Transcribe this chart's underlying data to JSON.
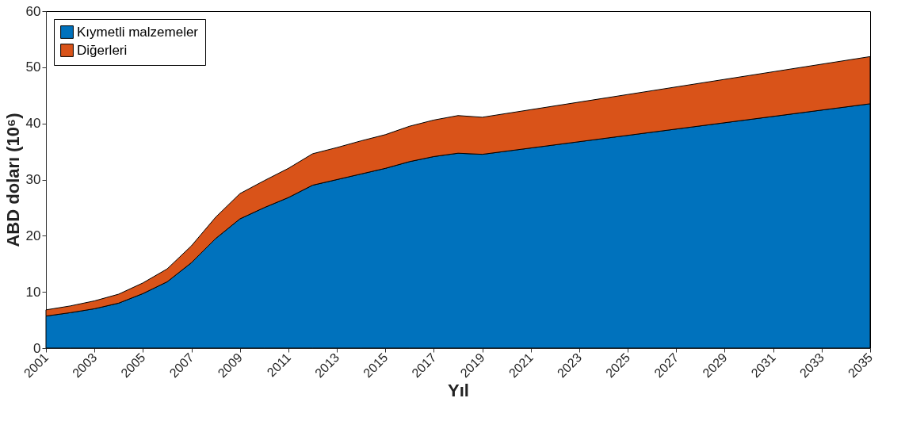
{
  "chart_data": {
    "type": "area",
    "stacked": true,
    "xlabel": "Yıl",
    "ylabel": "ABD doları (10⁶)",
    "x": [
      2001,
      2002,
      2003,
      2004,
      2005,
      2006,
      2007,
      2008,
      2009,
      2010,
      2011,
      2012,
      2013,
      2014,
      2015,
      2016,
      2017,
      2018,
      2019,
      2035
    ],
    "series": [
      {
        "name": "Kıymetli malzemeler",
        "color": "#0072bd",
        "values": [
          5.7,
          6.3,
          7.0,
          8.0,
          9.7,
          11.8,
          15.2,
          19.5,
          23.0,
          25.0,
          26.8,
          29.0,
          30.0,
          31.0,
          32.0,
          33.2,
          34.1,
          34.7,
          34.5,
          43.5
        ]
      },
      {
        "name": "Diğerleri",
        "color": "#d95319",
        "values": [
          1.1,
          1.2,
          1.4,
          1.6,
          1.9,
          2.3,
          3.0,
          3.8,
          4.5,
          4.8,
          5.2,
          5.6,
          5.7,
          5.9,
          6.0,
          6.3,
          6.5,
          6.7,
          6.6,
          8.4
        ]
      }
    ],
    "xlim": [
      2001,
      2035
    ],
    "xticks": [
      2001,
      2003,
      2005,
      2007,
      2009,
      2011,
      2013,
      2015,
      2017,
      2019,
      2021,
      2023,
      2025,
      2027,
      2029,
      2031,
      2033,
      2035
    ],
    "ylim": [
      0,
      60
    ],
    "yticks": [
      0,
      10,
      20,
      30,
      40,
      50,
      60
    ],
    "grid": false,
    "legend": "top left"
  }
}
